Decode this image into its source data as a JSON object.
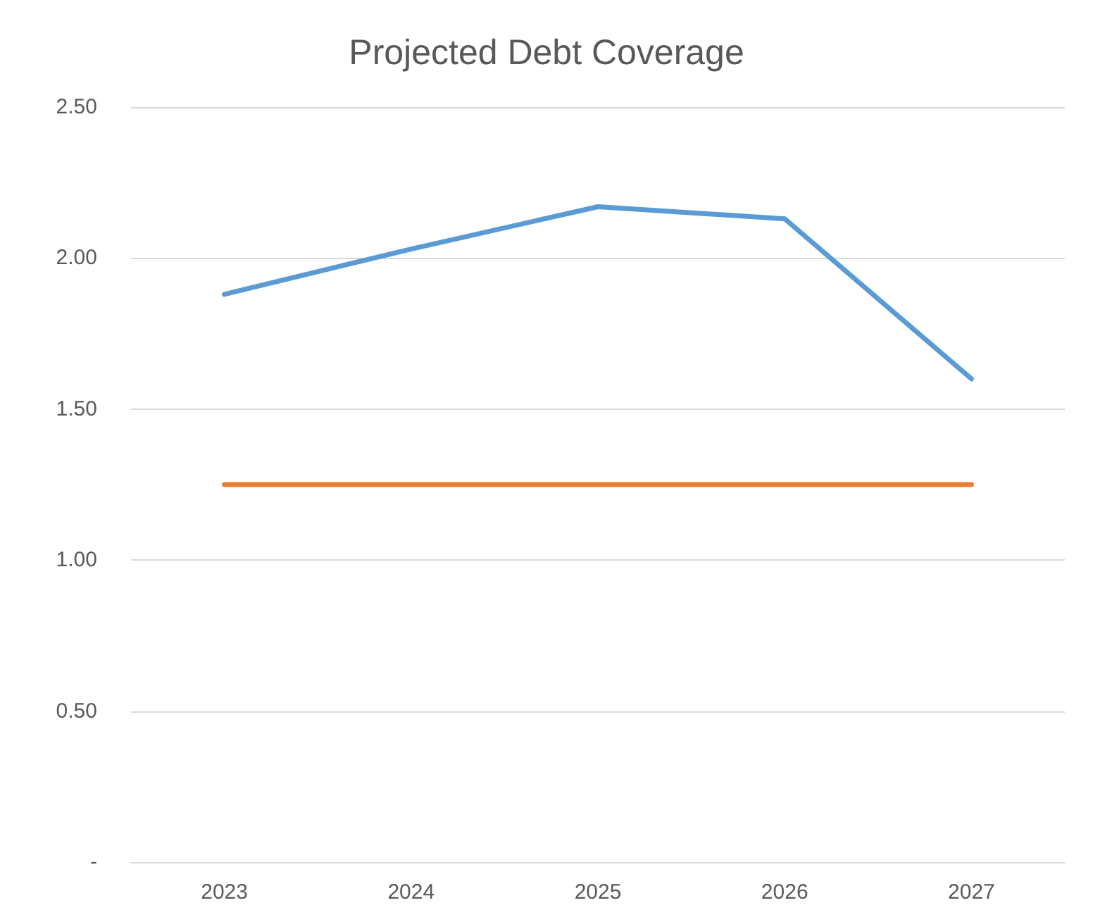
{
  "chart_data": {
    "type": "line",
    "title": "Projected Debt Coverage",
    "categories": [
      "2023",
      "2024",
      "2025",
      "2026",
      "2027"
    ],
    "series": [
      {
        "color": "#5b9bd5",
        "values": [
          1.88,
          2.03,
          2.17,
          2.13,
          1.6
        ]
      },
      {
        "color": "#ed7d31",
        "values": [
          1.25,
          1.25,
          1.25,
          1.25,
          1.25
        ]
      }
    ],
    "ylim": [
      0,
      2.5
    ],
    "yticks": [
      {
        "value": 0,
        "label": "-"
      },
      {
        "value": 0.5,
        "label": "0.50"
      },
      {
        "value": 1,
        "label": "1.00"
      },
      {
        "value": 1.5,
        "label": "1.50"
      },
      {
        "value": 2,
        "label": "2.00"
      },
      {
        "value": 2.5,
        "label": "2.50"
      }
    ],
    "grid": "y",
    "marker": "none",
    "line_style": "solid"
  }
}
